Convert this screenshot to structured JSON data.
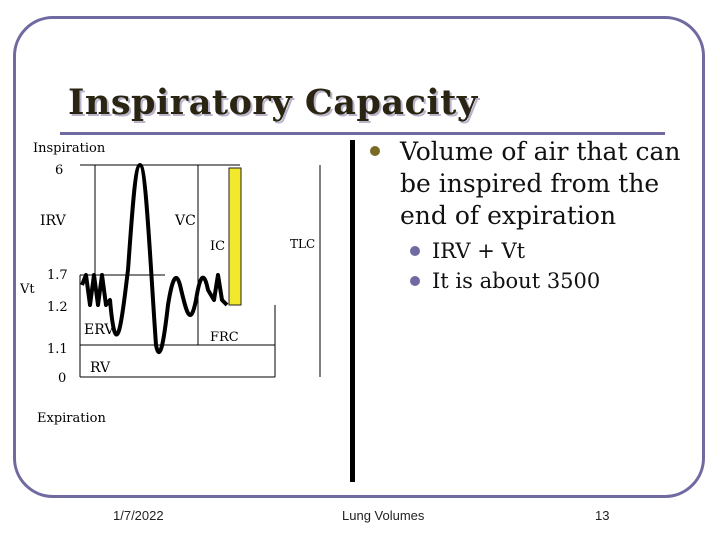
{
  "slide": {
    "title": "Inspiratory Capacity",
    "bullets": [
      {
        "text": "Volume of air that can be inspired from the end of expiration",
        "sub": [
          "IRV + Vt",
          "It is about 3500"
        ]
      }
    ]
  },
  "diagram": {
    "labels": {
      "inspiration": "Inspiration",
      "expiration": "Expiration",
      "irv": "IRV",
      "vc": "VC",
      "ic": "IC",
      "tlc": "TLC",
      "vt": "Vt",
      "erv": "ERV",
      "frc": "FRC",
      "rv": "RV"
    },
    "levels": [
      "6",
      "1.7",
      "1.2",
      "1.1",
      "0"
    ],
    "colors": {
      "ic_bar": "#f2e82c",
      "trace": "#000000"
    }
  },
  "footer": {
    "date": "1/7/2022",
    "center": "Lung Volumes",
    "page": "13"
  }
}
